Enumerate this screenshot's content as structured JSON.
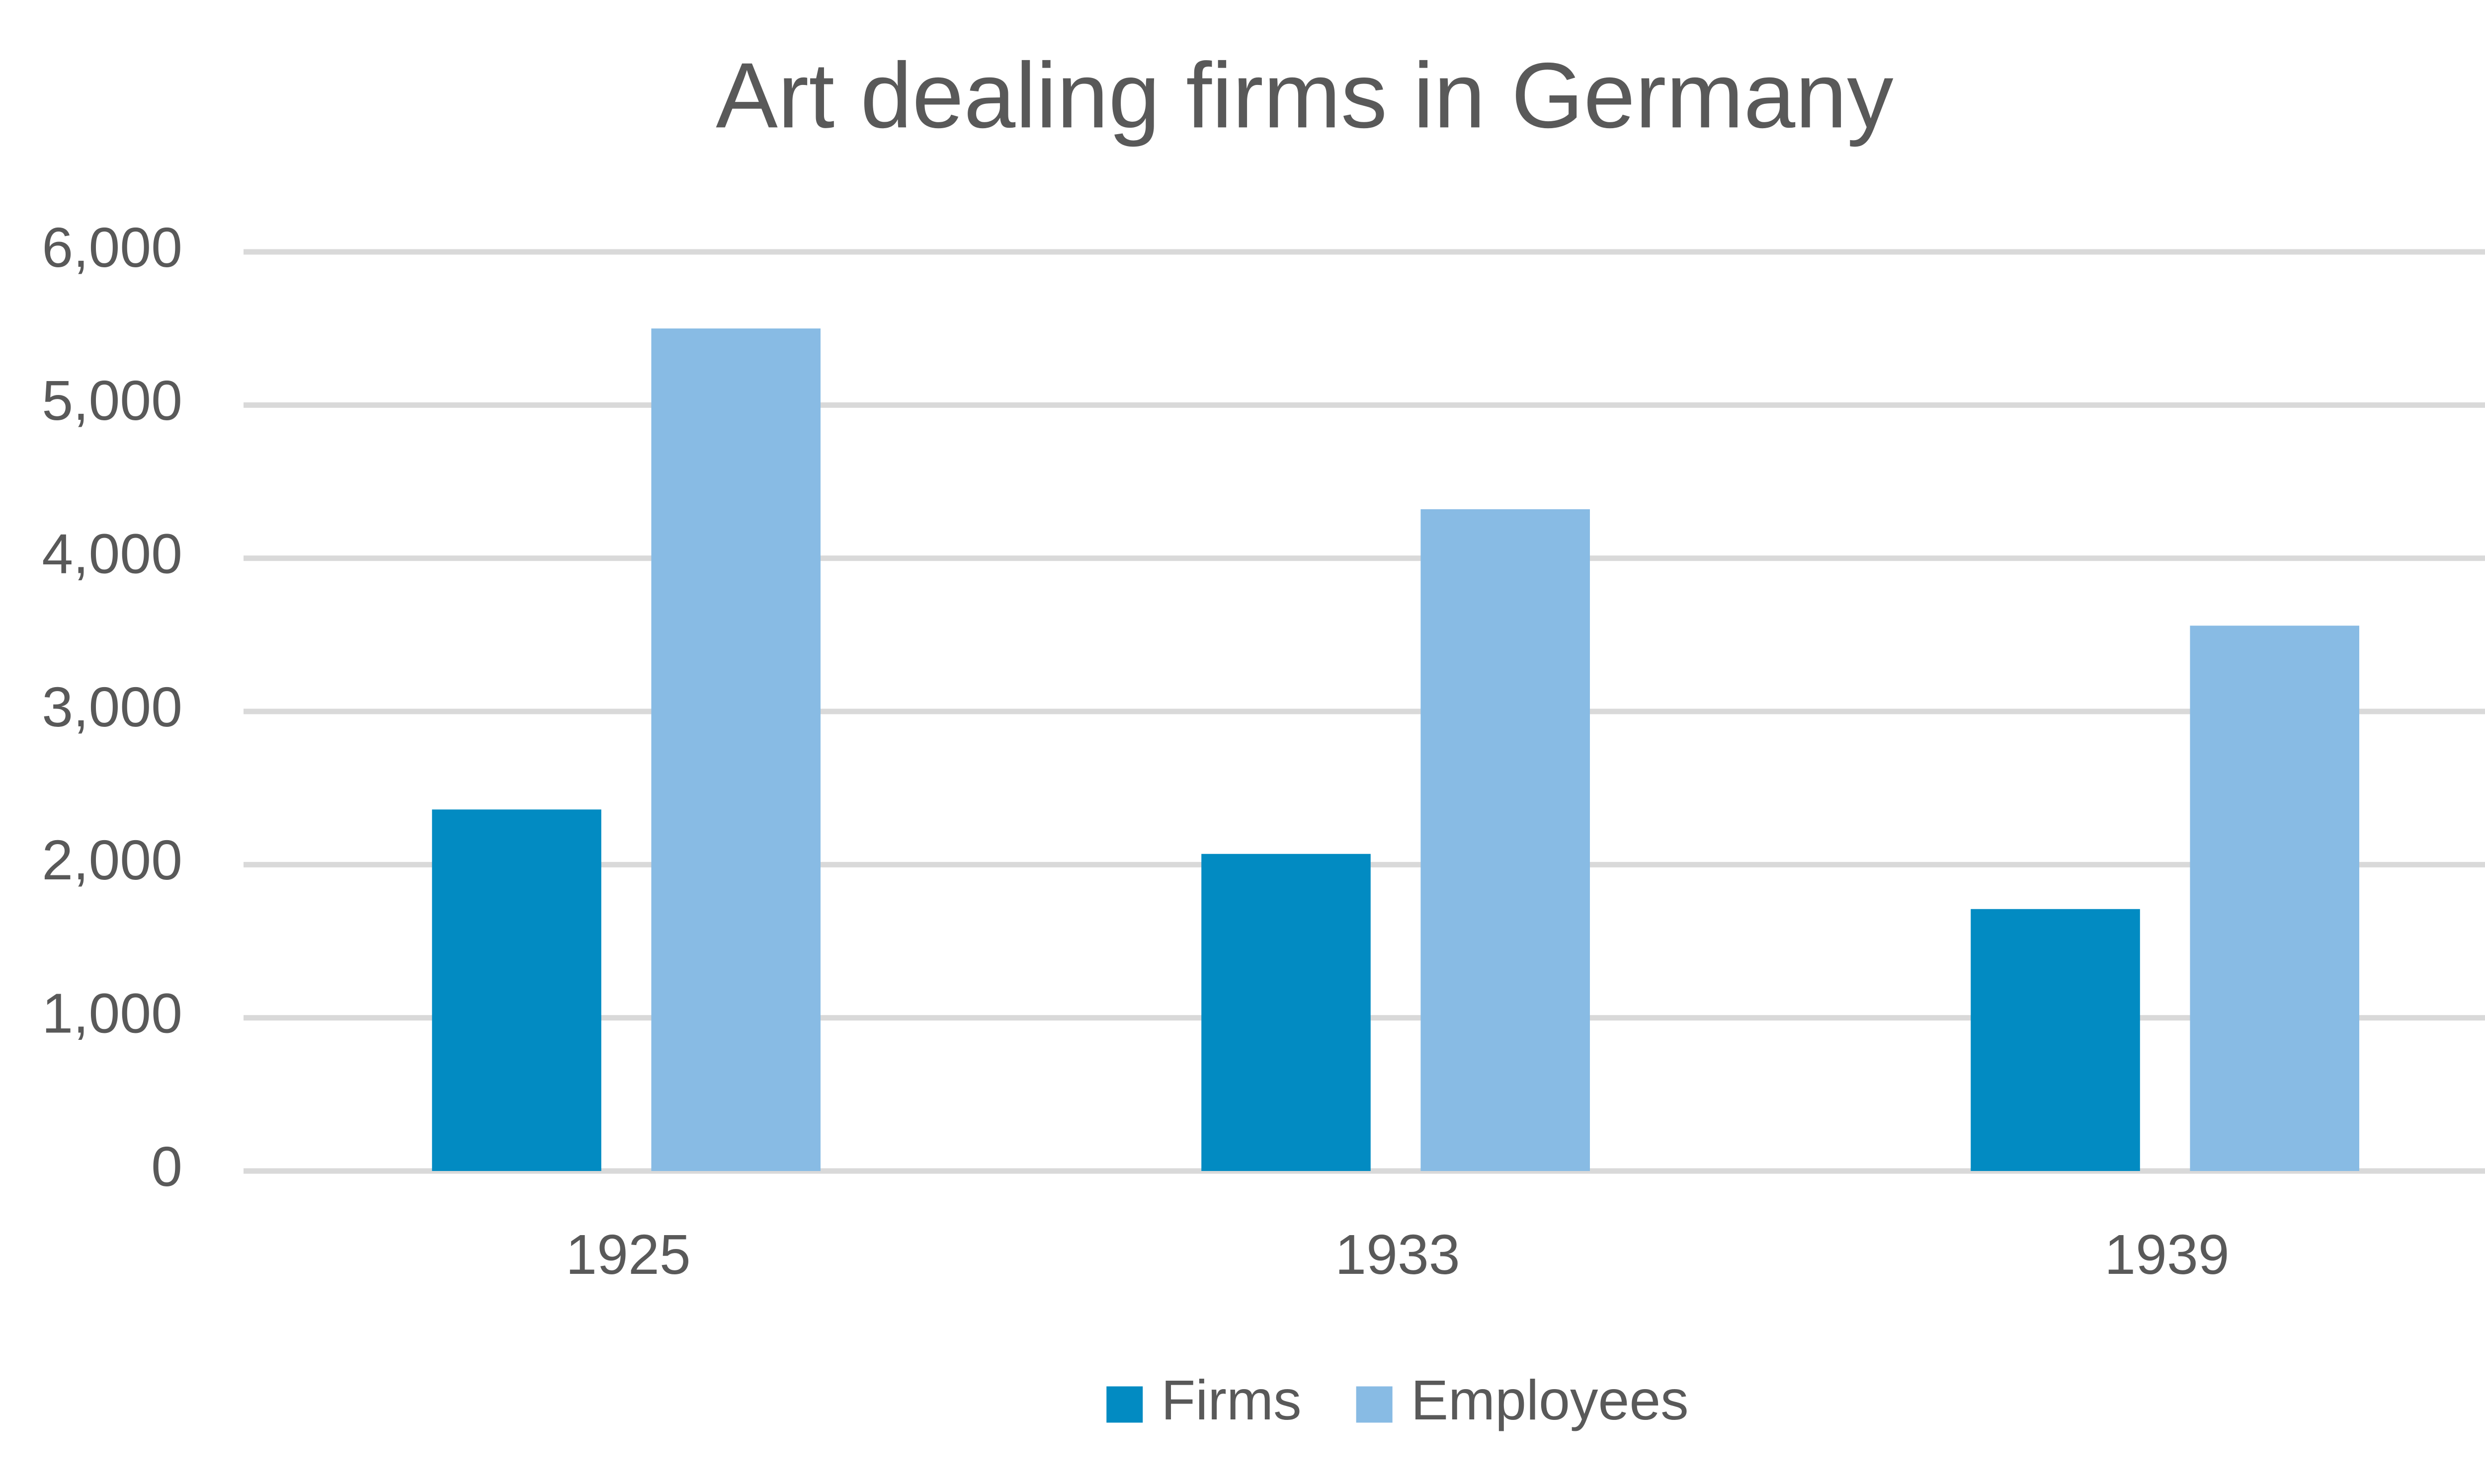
{
  "chart_data": {
    "type": "bar",
    "title": "Art dealing firms in Germany",
    "categories": [
      "1925",
      "1933",
      "1939"
    ],
    "series": [
      {
        "name": "Firms",
        "color": "#028bc2",
        "values": [
          2360,
          2070,
          1710
        ]
      },
      {
        "name": "Employees",
        "color": "#88bbe4",
        "values": [
          5500,
          4320,
          3560
        ]
      }
    ],
    "ylim": [
      0,
      6000
    ],
    "yticks": [
      0,
      {
        "value": 1000,
        "label": "1,000"
      },
      {
        "value": 2000,
        "label": "2,000"
      },
      {
        "value": 3000,
        "label": "3,000"
      },
      {
        "value": 4000,
        "label": "4,000"
      },
      {
        "value": 5000,
        "label": "5,000"
      },
      {
        "value": 6000,
        "label": "6,000"
      }
    ],
    "grid": true,
    "legend": "bottom"
  }
}
